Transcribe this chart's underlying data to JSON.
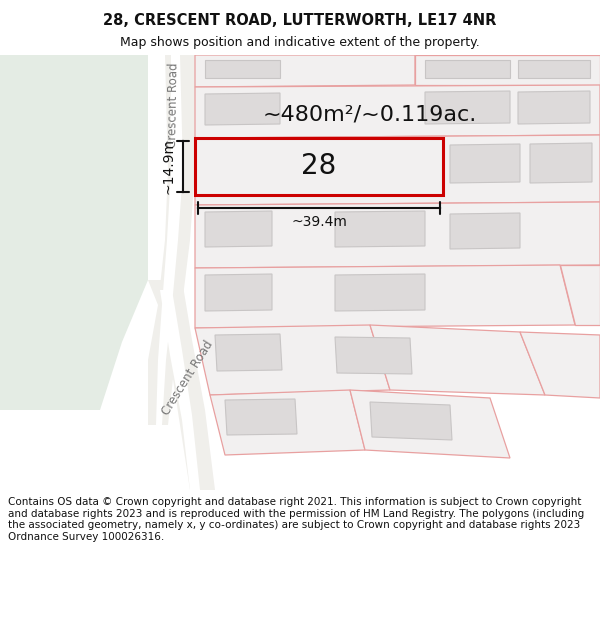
{
  "title_line1": "28, CRESCENT ROAD, LUTTERWORTH, LE17 4NR",
  "title_line2": "Map shows position and indicative extent of the property.",
  "title_fontsize": 10.5,
  "subtitle_fontsize": 9,
  "footer_text": "Contains OS data © Crown copyright and database right 2021. This information is subject to Crown copyright and database rights 2023 and is reproduced with the permission of HM Land Registry. The polygons (including the associated geometry, namely x, y co-ordinates) are subject to Crown copyright and database rights 2023 Ordnance Survey 100026316.",
  "footer_fontsize": 7.5,
  "map_bg": "#f7f6f2",
  "green_color": "#e4ece4",
  "road_color": "#f0efeb",
  "road_white": "#ffffff",
  "parcel_face": "#f2f0f0",
  "parcel_edge": "#e8a0a0",
  "building_face": "#dddada",
  "building_edge": "#c8c5c5",
  "target_edge": "#cc0000",
  "dim_color": "#111111",
  "text_color": "#111111",
  "road_text_color": "#777777",
  "label_28_fontsize": 20,
  "area_fontsize": 16,
  "dim_fontsize": 10,
  "road_label_fontsize": 8.5
}
